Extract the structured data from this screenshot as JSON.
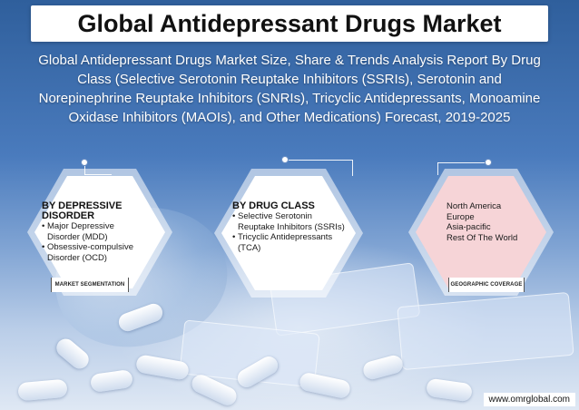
{
  "title": "Global Antidepressant Drugs Market",
  "subtitle": "Global Antidepressant Drugs Market Size, Share & Trends Analysis Report By Drug Class (Selective Serotonin Reuptake Inhibitors (SSRIs), Serotonin and Norepinephrine Reuptake Inhibitors (SNRIs), Tricyclic Antidepressants, Monoamine Oxidase Inhibitors (MAOIs), and Other Medications) Forecast, 2019-2025",
  "cards": {
    "disorder": {
      "title": "BY DEPRESSIVE DISORDER",
      "items": [
        "Major Depressive Disorder (MDD)",
        "Obsessive-compulsive Disorder (OCD)"
      ],
      "tag": "MARKET SEGMENTATION"
    },
    "drug_class": {
      "title": "BY DRUG CLASS",
      "items": [
        "Selective Serotonin Reuptake Inhibitors (SSRIs)",
        "Tricyclic Antidepressants (TCA)"
      ]
    },
    "geography": {
      "items": [
        "North America",
        "Europe",
        "Asia-pacific",
        "Rest Of The World"
      ],
      "tag": "GEOGRAPHIC COVERAGE"
    }
  },
  "website": "www.omrglobal.com",
  "colors": {
    "background_top": "#2f5f9c",
    "card_white": "#ffffff",
    "card_pink": "#f6d4d7"
  }
}
